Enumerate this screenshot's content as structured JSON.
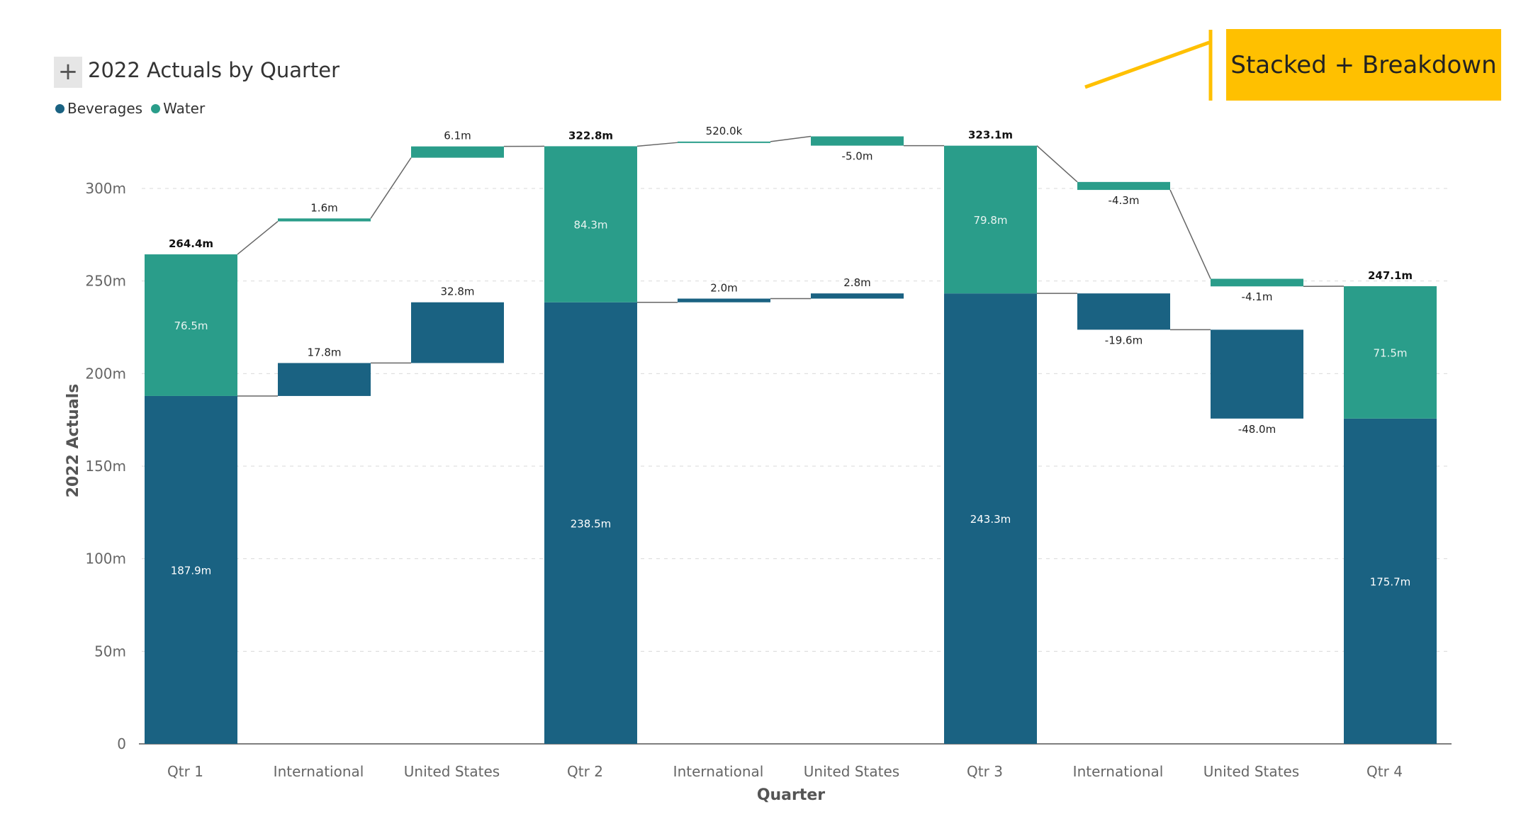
{
  "header": {
    "expand_label": "+",
    "title": "2022 Actuals by Quarter"
  },
  "legend": {
    "items": [
      {
        "label": "Beverages",
        "color": "#1A6282"
      },
      {
        "label": "Water",
        "color": "#2A9D8A"
      }
    ]
  },
  "annotation": {
    "label": "Stacked + Breakdown",
    "color": "#FFC000"
  },
  "colors": {
    "beverages": "#1A6282",
    "water": "#2A9D8A",
    "connector": "#666666",
    "grid": "#d9d9d9"
  },
  "chart_data": {
    "type": "bar",
    "subtype": "waterfall-stacked-breakdown",
    "title": "2022 Actuals by Quarter",
    "xlabel": "Quarter",
    "ylabel": "2022 Actuals",
    "ylim": [
      0,
      300
    ],
    "yticks": [
      "0",
      "50m",
      "100m",
      "150m",
      "200m",
      "250m",
      "300m"
    ],
    "ytick_values": [
      0,
      50,
      100,
      150,
      200,
      250,
      300
    ],
    "grid": true,
    "legend_position": "top-left",
    "series": [
      {
        "name": "Beverages"
      },
      {
        "name": "Water"
      }
    ],
    "categories": [
      "Qtr 1",
      "International",
      "United States",
      "Qtr 2",
      "International",
      "United States",
      "Qtr 3",
      "International",
      "United States",
      "Qtr 4"
    ],
    "bars": [
      {
        "category": "Qtr 1",
        "kind": "total",
        "segments": [
          {
            "series": "Beverages",
            "value": 187.9,
            "label": "187.9m"
          },
          {
            "series": "Water",
            "value": 76.5,
            "label": "76.5m"
          }
        ],
        "total": 264.4,
        "total_label": "264.4m"
      },
      {
        "category": "International",
        "kind": "delta",
        "segments": [
          {
            "series": "Beverages",
            "value": 17.8,
            "label": "17.8m"
          },
          {
            "series": "Water",
            "value": 1.6,
            "label": "1.6m"
          }
        ]
      },
      {
        "category": "United States",
        "kind": "delta",
        "segments": [
          {
            "series": "Beverages",
            "value": 32.8,
            "label": "32.8m"
          },
          {
            "series": "Water",
            "value": 6.1,
            "label": "6.1m"
          }
        ]
      },
      {
        "category": "Qtr 2",
        "kind": "total",
        "segments": [
          {
            "series": "Beverages",
            "value": 238.5,
            "label": "238.5m"
          },
          {
            "series": "Water",
            "value": 84.3,
            "label": "84.3m"
          }
        ],
        "total": 322.8,
        "total_label": "322.8m"
      },
      {
        "category": "International",
        "kind": "delta",
        "segments": [
          {
            "series": "Beverages",
            "value": 2.0,
            "label": "2.0m"
          },
          {
            "series": "Water",
            "value": 0.52,
            "label": "520.0k"
          }
        ]
      },
      {
        "category": "United States",
        "kind": "delta",
        "segments": [
          {
            "series": "Beverages",
            "value": 2.8,
            "label": "2.8m"
          },
          {
            "series": "Water",
            "value": -5.0,
            "label": "-5.0m"
          }
        ]
      },
      {
        "category": "Qtr 3",
        "kind": "total",
        "segments": [
          {
            "series": "Beverages",
            "value": 243.3,
            "label": "243.3m"
          },
          {
            "series": "Water",
            "value": 79.8,
            "label": "79.8m"
          }
        ],
        "total": 323.1,
        "total_label": "323.1m"
      },
      {
        "category": "International",
        "kind": "delta",
        "segments": [
          {
            "series": "Beverages",
            "value": -19.6,
            "label": "-19.6m"
          },
          {
            "series": "Water",
            "value": -4.3,
            "label": "-4.3m"
          }
        ]
      },
      {
        "category": "United States",
        "kind": "delta",
        "segments": [
          {
            "series": "Beverages",
            "value": -48.0,
            "label": "-48.0m"
          },
          {
            "series": "Water",
            "value": -4.1,
            "label": "-4.1m"
          }
        ]
      },
      {
        "category": "Qtr 4",
        "kind": "total",
        "segments": [
          {
            "series": "Beverages",
            "value": 175.7,
            "label": "175.7m"
          },
          {
            "series": "Water",
            "value": 71.5,
            "label": "71.5m"
          }
        ],
        "total": 247.1,
        "total_label": "247.1m"
      }
    ]
  }
}
